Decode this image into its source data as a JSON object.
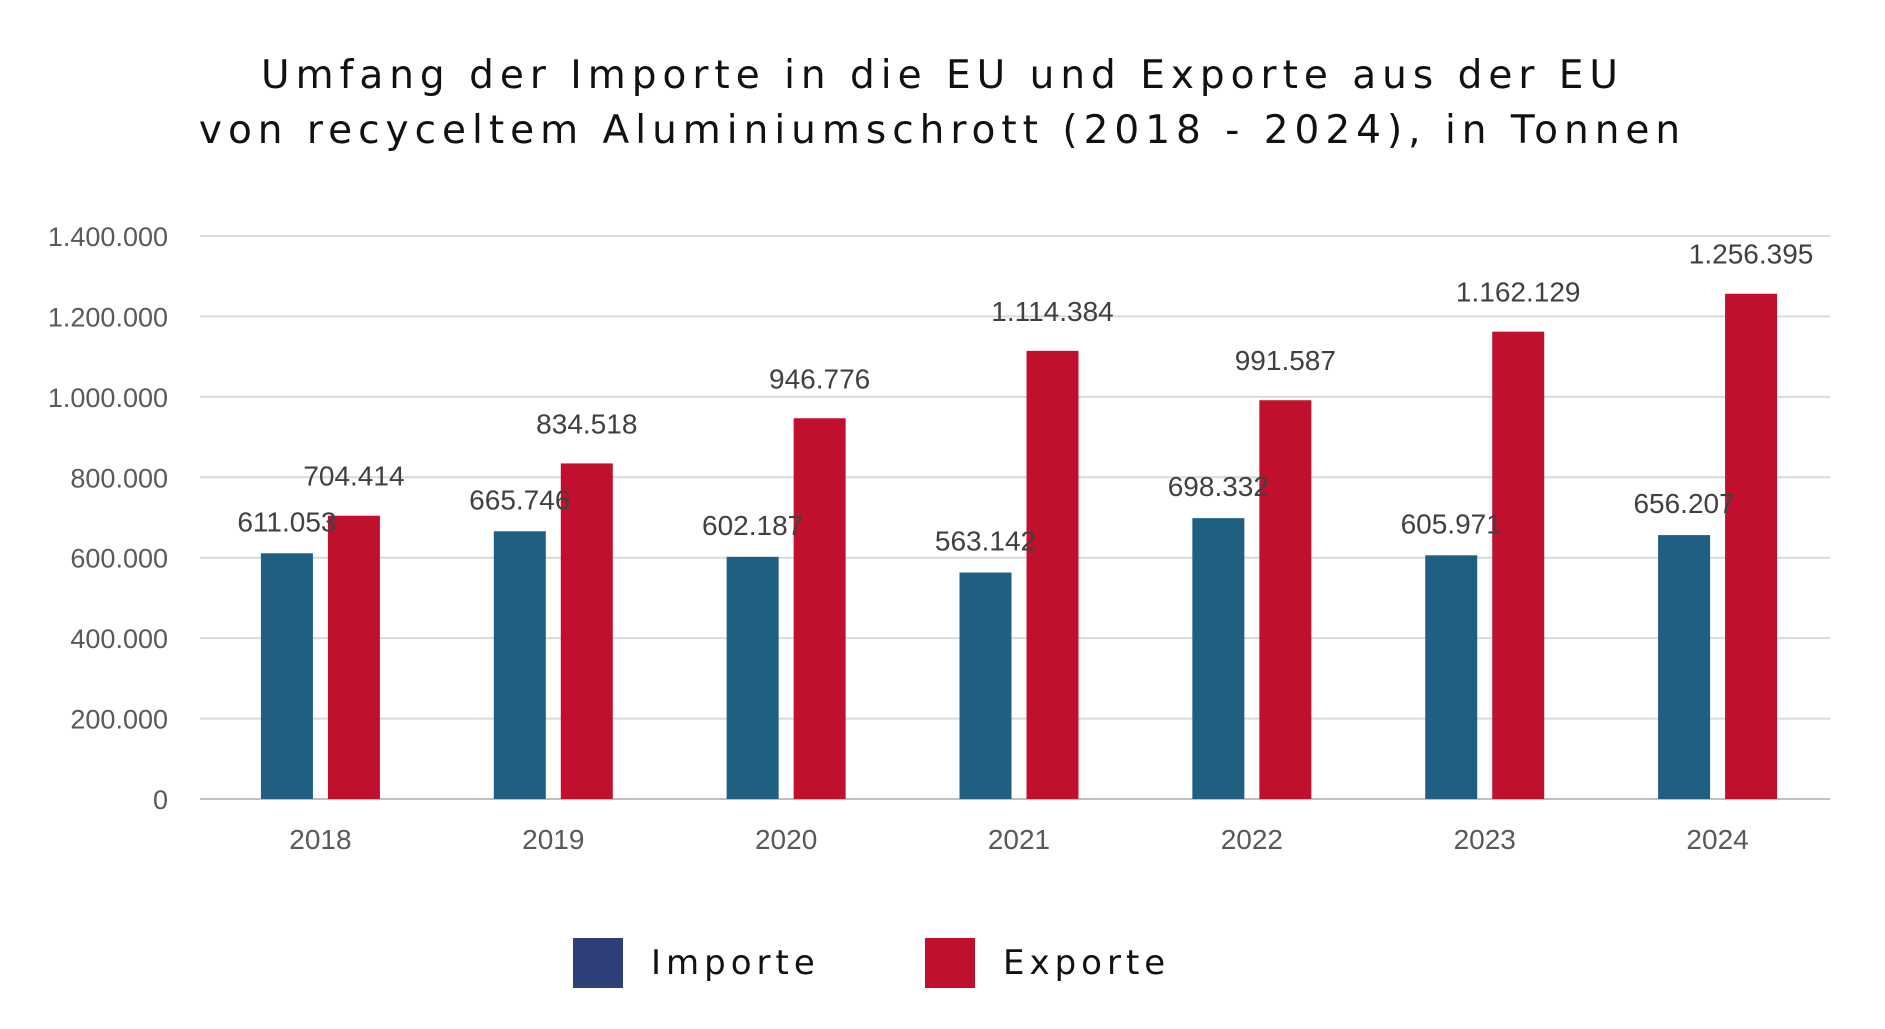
{
  "chart_data": {
    "type": "bar",
    "title_lines": [
      "Umfang der Importe in die EU und Exporte aus der EU",
      "von recyceltem Aluminiumschrott (2018 - 2024), in Tonnen"
    ],
    "categories": [
      "2018",
      "2019",
      "2020",
      "2021",
      "2022",
      "2023",
      "2024"
    ],
    "series": [
      {
        "name": "Importe",
        "values": [
          611053,
          665746,
          602187,
          563142,
          698332,
          605971,
          656207
        ],
        "labels": [
          "611.053",
          "665.746",
          "602.187",
          "563.142",
          "698.332",
          "605.971",
          "656.207"
        ],
        "color": "#1f5f82",
        "legend_color": "#2e3f7a"
      },
      {
        "name": "Exporte",
        "values": [
          704414,
          834518,
          946776,
          1114384,
          991587,
          1162129,
          1256395
        ],
        "labels": [
          "704.414",
          "834.518",
          "946.776",
          "1.114.384",
          "991.587",
          "1.162.129",
          "1.256.395"
        ],
        "color": "#c1102e",
        "legend_color": "#c1102e"
      }
    ],
    "ylim": [
      0,
      1400000
    ],
    "yticks": [
      0,
      200000,
      400000,
      600000,
      800000,
      1000000,
      1200000,
      1400000
    ],
    "ytick_labels": [
      "0",
      "200.000",
      "400.000",
      "600.000",
      "800.000",
      "1.000.000",
      "1.200.000",
      "1.400.000"
    ],
    "grid": true,
    "legend_position": "bottom",
    "colors": {
      "grid": "#d9d9d9",
      "tick_text": "#595959",
      "value_label": "#404040"
    }
  }
}
